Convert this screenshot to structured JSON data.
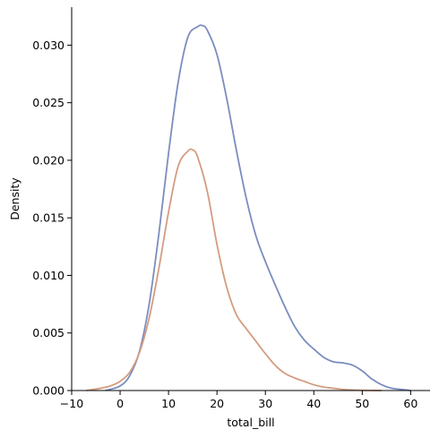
{
  "chart_data": {
    "type": "line",
    "title": "",
    "xlabel": "total_bill",
    "ylabel": "Density",
    "xlim": [
      -10,
      64
    ],
    "ylim": [
      0,
      0.0333
    ],
    "xticks": [
      -10,
      0,
      10,
      20,
      30,
      40,
      50,
      60
    ],
    "yticks": [
      0.0,
      0.005,
      0.01,
      0.015,
      0.02,
      0.025,
      0.03
    ],
    "xtick_labels": [
      "−10",
      "0",
      "10",
      "20",
      "30",
      "40",
      "50",
      "60"
    ],
    "ytick_labels": [
      "0.000",
      "0.005",
      "0.010",
      "0.015",
      "0.020",
      "0.025",
      "0.030"
    ],
    "grid": false,
    "legend": "none",
    "series": [
      {
        "color": "#7b8dbf",
        "x": [
          -3,
          0,
          2,
          4,
          6,
          8,
          10,
          12,
          14,
          16,
          17,
          18,
          20,
          22,
          24,
          26,
          28,
          30,
          32,
          34,
          36,
          38,
          40,
          42,
          44,
          46,
          48,
          50,
          52,
          54,
          56,
          58,
          60
        ],
        "y": [
          0.0,
          0.0004,
          0.0013,
          0.0034,
          0.0075,
          0.0136,
          0.0206,
          0.0268,
          0.0307,
          0.0316,
          0.0317,
          0.0313,
          0.0292,
          0.0254,
          0.0209,
          0.0168,
          0.0135,
          0.0112,
          0.0092,
          0.0073,
          0.0056,
          0.0044,
          0.0036,
          0.0029,
          0.0025,
          0.0024,
          0.0022,
          0.0017,
          0.001,
          0.0005,
          0.0002,
          0.0001,
          0.0
        ]
      },
      {
        "color": "#d49c80",
        "x": [
          -7,
          -4,
          -2,
          0,
          2,
          4,
          6,
          8,
          10,
          12,
          14,
          15,
          16,
          18,
          20,
          22,
          24,
          26,
          28,
          30,
          32,
          34,
          36,
          38,
          40,
          42,
          44,
          46,
          48,
          50,
          52,
          54
        ],
        "y": [
          0.0,
          0.0002,
          0.0004,
          0.0008,
          0.0016,
          0.0033,
          0.0063,
          0.0106,
          0.0155,
          0.0195,
          0.0208,
          0.0209,
          0.0203,
          0.0173,
          0.0127,
          0.009,
          0.0066,
          0.0054,
          0.0043,
          0.0032,
          0.0022,
          0.0015,
          0.0011,
          0.0008,
          0.0005,
          0.0003,
          0.0002,
          0.0001,
          5e-05,
          2e-05,
          1e-05,
          0.0
        ]
      }
    ]
  }
}
